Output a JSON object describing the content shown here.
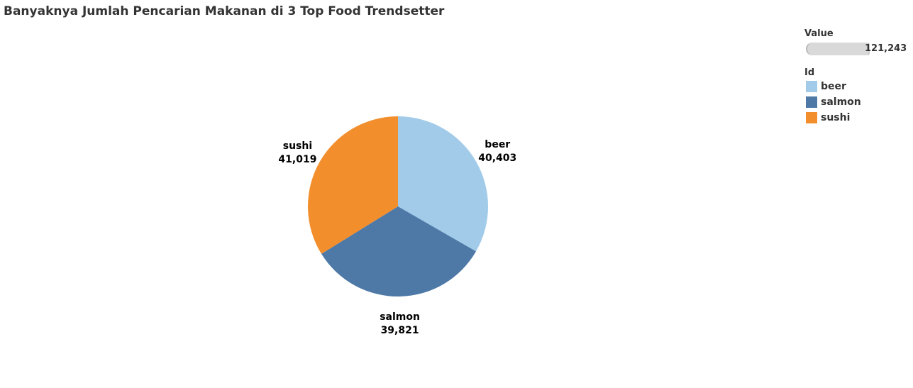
{
  "chart_data": {
    "type": "pie",
    "title": "Banyaknya Jumlah Pencarian Makanan di 3 Top Food Trendsetter",
    "categories": [
      "beer",
      "salmon",
      "sushi"
    ],
    "values": [
      40403,
      39821,
      41019
    ],
    "value_labels": [
      "40,403",
      "39,821",
      "41,019"
    ],
    "colors": [
      "#a1cbe9",
      "#4e79a7",
      "#f28e2c"
    ],
    "legend": {
      "value_title": "Value",
      "value_max_label": "121,243",
      "id_title": "Id",
      "placement": "top-right"
    }
  }
}
